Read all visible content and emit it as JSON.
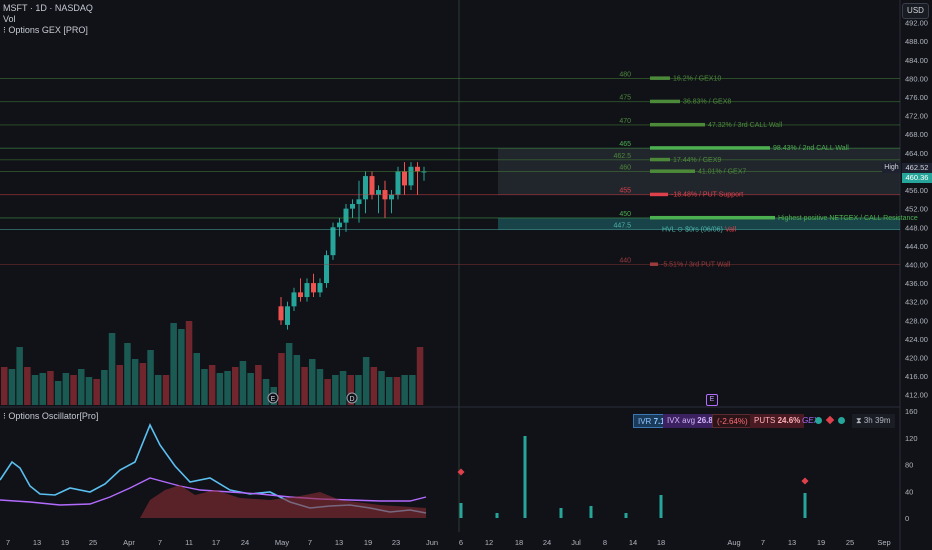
{
  "header": {
    "symbol_line": "MSFT · 1D · NASDAQ",
    "vol_label": "Vol",
    "indicator_label": "⁝ Options GEX [PRO]",
    "oscillator_label": "⁝ Options Oscillator[Pro]",
    "currency_button": "USD"
  },
  "price_axis": {
    "ticks": [
      "492.00",
      "488.00",
      "484.00",
      "480.00",
      "476.00",
      "472.00",
      "468.00",
      "464.00",
      "460.00",
      "456.00",
      "452.00",
      "448.00",
      "444.00",
      "440.00",
      "436.00",
      "432.00",
      "428.00",
      "424.00",
      "420.00",
      "416.00",
      "412.00"
    ],
    "high_label": "High",
    "high_value": "462.52",
    "last_value": "460.36"
  },
  "osc_axis": {
    "ticks": [
      "160",
      "120",
      "80",
      "40",
      "0"
    ]
  },
  "time_axis": {
    "ticks": [
      "7",
      "13",
      "19",
      "25",
      "Apr",
      "7",
      "11",
      "17",
      "24",
      "May",
      "7",
      "13",
      "19",
      "23",
      "Jun",
      "6",
      "12",
      "18",
      "24",
      "Jul",
      "8",
      "14",
      "18",
      "Aug",
      "7",
      "13",
      "19",
      "25",
      "Sep"
    ]
  },
  "gex_levels": [
    {
      "level": "480",
      "label": "16.2% / GEX10",
      "color": "#4c8a3a"
    },
    {
      "level": "475",
      "label": "36.83% / GEX8",
      "color": "#4c8a3a"
    },
    {
      "level": "470",
      "label": "47.32% / 3rd CALL Wall",
      "color": "#4c8a3a"
    },
    {
      "level": "465",
      "label": "98.43% / 2nd CALL Wall",
      "color": "#4caf50"
    },
    {
      "level": "462.5",
      "label": "17.44% / GEX9",
      "color": "#4c8a3a"
    },
    {
      "level": "460",
      "label": "41.01% / GEX7",
      "color": "#4c8a3a"
    },
    {
      "level": "455",
      "label": "-18.48% / PUT Support",
      "color": "#e0404a"
    },
    {
      "level": "450",
      "label": "Highest positive NETGEX / CALL Resistance",
      "color": "#4caf50"
    },
    {
      "level": "447.5",
      "label": "HVL ⊙ $0rs (06/06)",
      "color": "#4db6ac"
    },
    {
      "level": "440",
      "label": "-5.51% / 3rd PUT Wall",
      "color": "#9b3b3b"
    }
  ],
  "hvl_extra": "Vall",
  "badges": {
    "ivr_label": "IVR",
    "ivr_value": "7.1",
    "ivx_label": "IVX avg",
    "ivx_value": "26.8",
    "change": "(-2.64%)",
    "puts_label": "PUTS",
    "puts_value": "24.6%",
    "gex_label": "GEX",
    "timer": "3h 39m"
  },
  "earnings_badges": [
    "E",
    "D",
    "E"
  ],
  "chart_data": {
    "type": "candlestick",
    "visible_candles": [
      {
        "o": 431,
        "h": 433,
        "l": 427,
        "c": 428
      },
      {
        "o": 427,
        "h": 432,
        "l": 426,
        "c": 431
      },
      {
        "o": 431,
        "h": 435,
        "l": 430,
        "c": 434
      },
      {
        "o": 434,
        "h": 437,
        "l": 432,
        "c": 433
      },
      {
        "o": 433,
        "h": 437,
        "l": 432,
        "c": 436
      },
      {
        "o": 436,
        "h": 438,
        "l": 433,
        "c": 434
      },
      {
        "o": 434,
        "h": 437,
        "l": 433,
        "c": 436
      },
      {
        "o": 436,
        "h": 443,
        "l": 435,
        "c": 442
      },
      {
        "o": 442,
        "h": 449,
        "l": 441,
        "c": 448
      },
      {
        "o": 448,
        "h": 450,
        "l": 446,
        "c": 449
      },
      {
        "o": 449,
        "h": 453,
        "l": 447,
        "c": 452
      },
      {
        "o": 452,
        "h": 454,
        "l": 450,
        "c": 453
      },
      {
        "o": 453,
        "h": 458,
        "l": 449,
        "c": 454
      },
      {
        "o": 454,
        "h": 460,
        "l": 451,
        "c": 459
      },
      {
        "o": 459,
        "h": 460,
        "l": 454,
        "c": 455
      },
      {
        "o": 455,
        "h": 457,
        "l": 451,
        "c": 456
      },
      {
        "o": 456,
        "h": 458,
        "l": 450,
        "c": 454
      },
      {
        "o": 454,
        "h": 456,
        "l": 451,
        "c": 455
      },
      {
        "o": 455,
        "h": 461,
        "l": 454,
        "c": 460
      },
      {
        "o": 460,
        "h": 462,
        "l": 455,
        "c": 457
      },
      {
        "o": 457,
        "h": 462,
        "l": 456,
        "c": 461
      },
      {
        "o": 461,
        "h": 462,
        "l": 455,
        "c": 460
      },
      {
        "o": 460,
        "h": 461,
        "l": 458,
        "c": 460
      }
    ],
    "price_range": [
      410,
      496
    ]
  }
}
